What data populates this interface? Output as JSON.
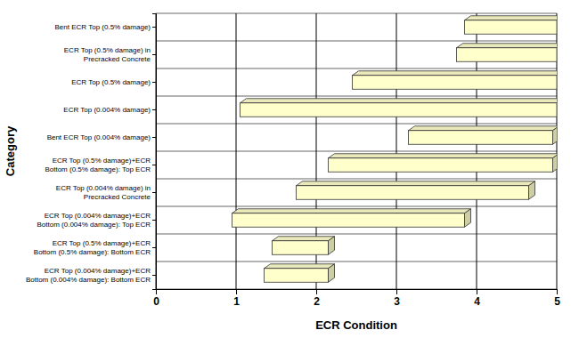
{
  "chart_data": {
    "type": "bar",
    "orientation": "horizontal",
    "categories": [
      "Bent ECR Top (0.5% damage)",
      "ECR Top (0.5% damage) in\nPrecracked Concrete",
      "ECR Top (0.5% damage)",
      "ECR Top (0.004% damage)",
      "Bent ECR Top (0.004% damage)",
      "ECR Top (0.5% damage)+ECR\nBottom (0.5% damage): Top ECR",
      "ECR Top (0.004% damage) in\nPrecracked Concrete",
      "ECR Top (0.004% damage)+ECR\nBottom (0.004% damage): Top ECR",
      "ECR Top (0.5% damage)+ECR\nBottom (0.5% damage): Bottom ECR",
      "ECR Top (0.004% damage)+ECR\nBottom (0.004% damage): Bottom ECR"
    ],
    "low": [
      3.85,
      3.75,
      2.45,
      1.05,
      3.15,
      2.15,
      1.75,
      0.95,
      1.45,
      1.35
    ],
    "high": [
      5,
      5,
      5,
      5,
      4.95,
      4.95,
      4.65,
      3.85,
      2.15,
      2.15
    ],
    "color": "#ffffcc",
    "xlim": [
      0,
      5
    ],
    "xticks": [
      0,
      1,
      2,
      3,
      4,
      5
    ],
    "grid": true,
    "x_label": "ECR Condition",
    "y_label": "Category"
  }
}
